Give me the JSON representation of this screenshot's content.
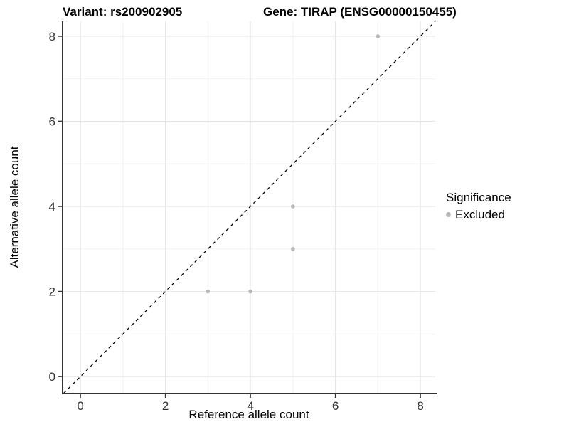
{
  "chart_data": {
    "type": "scatter",
    "title_left": "Variant: rs200902905",
    "title_right": "Gene: TIRAP (ENSG00000150455)",
    "xlabel": "Reference allele count",
    "ylabel": "Alternative allele count",
    "xlim": [
      -0.42,
      8.35
    ],
    "ylim": [
      -0.4,
      8.35
    ],
    "x_ticks": [
      0,
      2,
      4,
      6,
      8
    ],
    "y_ticks": [
      0,
      2,
      4,
      6,
      8
    ],
    "x_minor": [
      1,
      3,
      5,
      7
    ],
    "y_minor": [
      1,
      3,
      5,
      7
    ],
    "grid": true,
    "legend": {
      "position": "right",
      "title": "Significance",
      "entries": [
        "Excluded"
      ]
    },
    "identity_line": {
      "equation": "y = x",
      "style": "dashed",
      "color": "#000000"
    },
    "series": [
      {
        "name": "Excluded",
        "color": "#b8b8b8",
        "points": [
          {
            "x": 3,
            "y": 2
          },
          {
            "x": 4,
            "y": 2
          },
          {
            "x": 5,
            "y": 3
          },
          {
            "x": 5,
            "y": 4
          },
          {
            "x": 7,
            "y": 8
          }
        ]
      }
    ],
    "colors": {
      "background": "#ffffff",
      "grid_major": "#e7e7e7",
      "grid_minor": "#f1f1f1",
      "axis_line": "#333333",
      "tick_label": "#333333",
      "point": "#b8b8b8",
      "title_text": "#000000"
    }
  }
}
